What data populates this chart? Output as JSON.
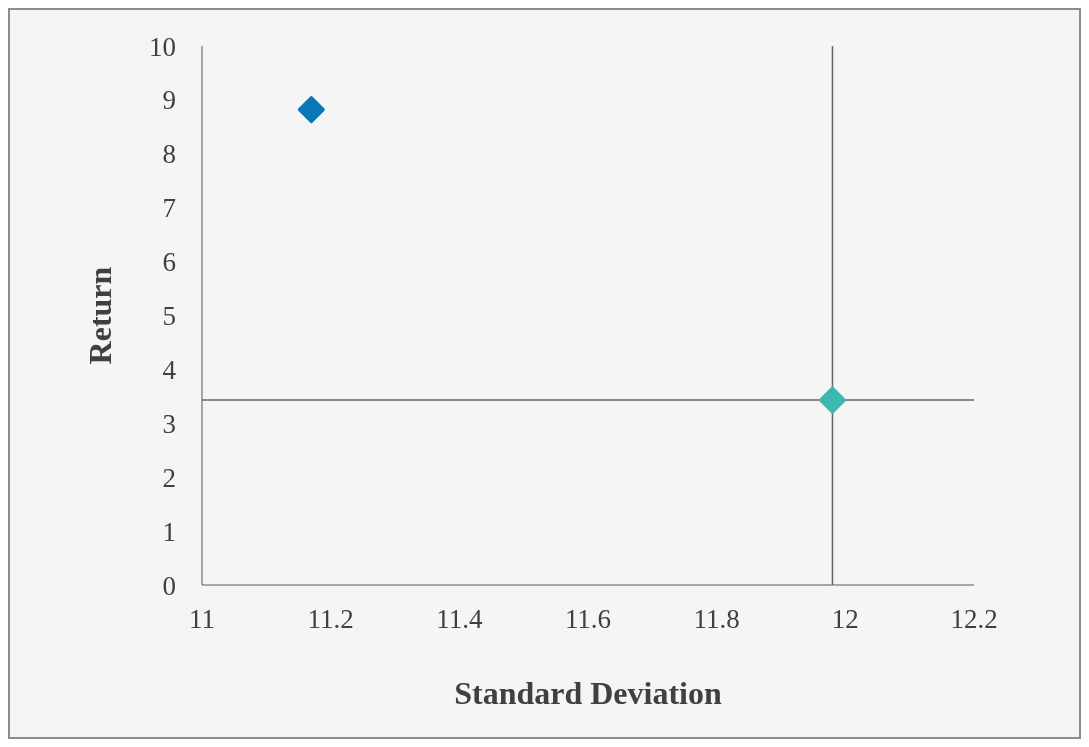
{
  "chart_data": {
    "type": "scatter",
    "xlabel": "Standard Deviation",
    "ylabel": "Return",
    "x": [
      11.17,
      11.98
    ],
    "values": [
      8.82,
      3.43
    ],
    "colors": [
      "#0a78b5",
      "#3db8ae"
    ],
    "marker": "diamond",
    "xlim": [
      11,
      12.2
    ],
    "xticks": [
      11,
      11.2,
      11.4,
      11.6,
      11.8,
      12,
      12.2
    ],
    "ylim": [
      0,
      10
    ],
    "yticks": [
      0,
      1,
      2,
      3,
      4,
      5,
      6,
      7,
      8,
      9,
      10
    ],
    "ref_lines": [
      {
        "axis": "x",
        "value": 11.98,
        "color": "#666666"
      },
      {
        "axis": "y",
        "value": 3.43,
        "color": "#666666"
      }
    ],
    "grid": false,
    "legend": false
  }
}
